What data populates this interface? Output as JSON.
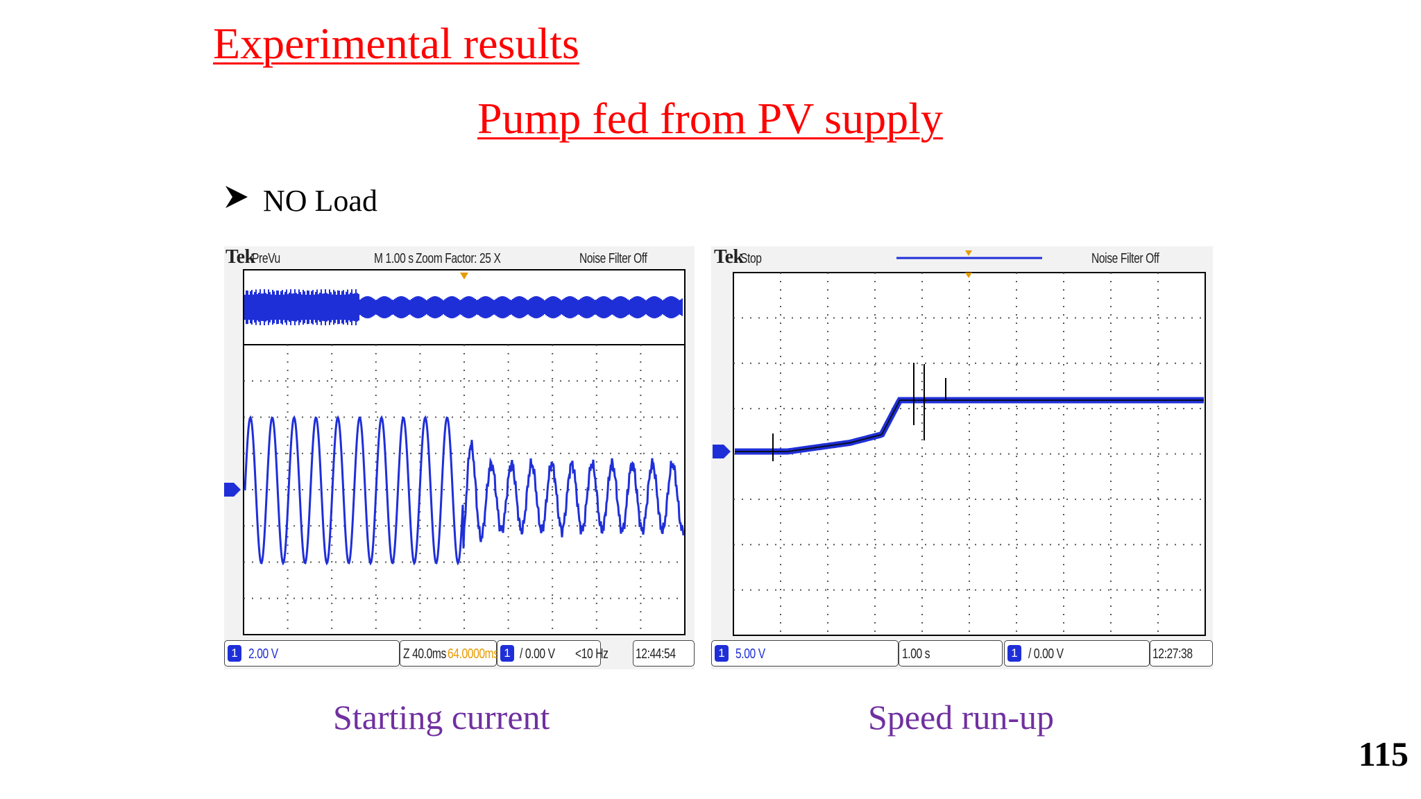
{
  "slide": {
    "title": "Experimental results",
    "subtitle": "Pump fed from PV supply",
    "bullet": "NO Load",
    "bullet_icon": "arrowhead-bullet-icon",
    "page_number": "115",
    "colors": {
      "title": "#ff0000",
      "caption": "#7030a0",
      "trace": "#1f2fd8"
    }
  },
  "scope_left": {
    "brand": "Tek",
    "mode": "PreVu",
    "timebase": "M 1.00 s",
    "zoom": "Zoom Factor: 25 X",
    "noise_filter": "Noise Filter Off",
    "channel_marker": "1",
    "ch_scale": "2.00 V",
    "zoom_timebase": "Z 40.0ms",
    "zoom_position": "64.0000ms",
    "trigger": "/ 0.00 V",
    "freq": "<10 Hz",
    "time": "12:44:54",
    "caption": "Starting current"
  },
  "scope_right": {
    "brand": "Tek",
    "mode": "Stop",
    "noise_filter": "Noise Filter Off",
    "channel_marker": "1",
    "ch_scale": "5.00 V",
    "timebase": "1.00 s",
    "trigger": "/ 0.00 V",
    "time": "12:27:38",
    "caption": "Speed run-up"
  }
}
